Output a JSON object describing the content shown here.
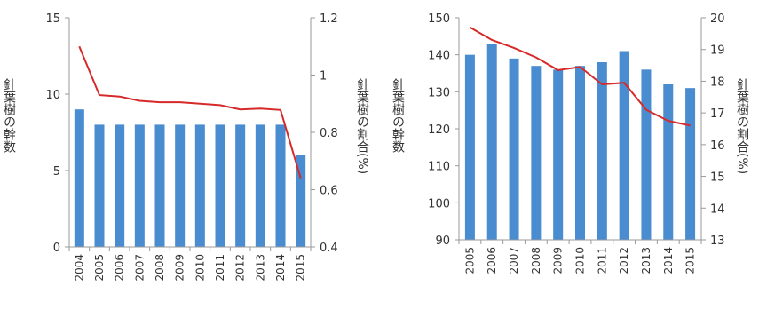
{
  "chart_data": [
    {
      "type": "bar",
      "categories": [
        "2004",
        "2005",
        "2006",
        "2007",
        "2008",
        "2009",
        "2010",
        "2011",
        "2012",
        "2013",
        "2014",
        "2015"
      ],
      "series": [
        {
          "values": [
            9,
            8,
            8,
            8,
            8,
            8,
            8,
            8,
            8,
            8,
            8,
            6
          ],
          "axis": "left",
          "color": "#4a8cd0"
        },
        {
          "type": "line",
          "values": [
            1.1,
            0.93,
            0.925,
            0.91,
            0.905,
            0.905,
            0.9,
            0.895,
            0.88,
            0.883,
            0.878,
            0.64
          ],
          "axis": "right",
          "color": "#d62a2a"
        }
      ],
      "ylabel": "針葉樹の幹数",
      "ylabel2": "針葉樹の割合(%)",
      "ylim": [
        0,
        15
      ],
      "y2lim": [
        0.4,
        1.2
      ],
      "yticks": [
        "0",
        "5",
        "10",
        "15"
      ],
      "y2ticks": [
        "0.4",
        "0.6",
        "0.8",
        "1",
        "1.2"
      ],
      "grid": false
    },
    {
      "type": "bar",
      "categories": [
        "2005",
        "2006",
        "2007",
        "2008",
        "2009",
        "2010",
        "2011",
        "2012",
        "2013",
        "2014",
        "2015"
      ],
      "series": [
        {
          "values": [
            140,
            143,
            139,
            137,
            136,
            137,
            138,
            141,
            136,
            132,
            131
          ],
          "axis": "left",
          "color": "#4a8cd0"
        },
        {
          "type": "line",
          "values": [
            19.7,
            19.3,
            19.05,
            18.75,
            18.35,
            18.45,
            17.9,
            17.95,
            17.1,
            16.75,
            16.6
          ],
          "axis": "right",
          "color": "#d62a2a"
        }
      ],
      "ylabel": "針葉樹の幹数",
      "ylabel2": "針葉樹の割合(%)",
      "ylim": [
        90,
        150
      ],
      "y2lim": [
        13,
        20
      ],
      "yticks": [
        "90",
        "100",
        "110",
        "120",
        "130",
        "140",
        "150"
      ],
      "y2ticks": [
        "13",
        "14",
        "15",
        "16",
        "17",
        "18",
        "19",
        "20"
      ],
      "grid": false
    }
  ]
}
